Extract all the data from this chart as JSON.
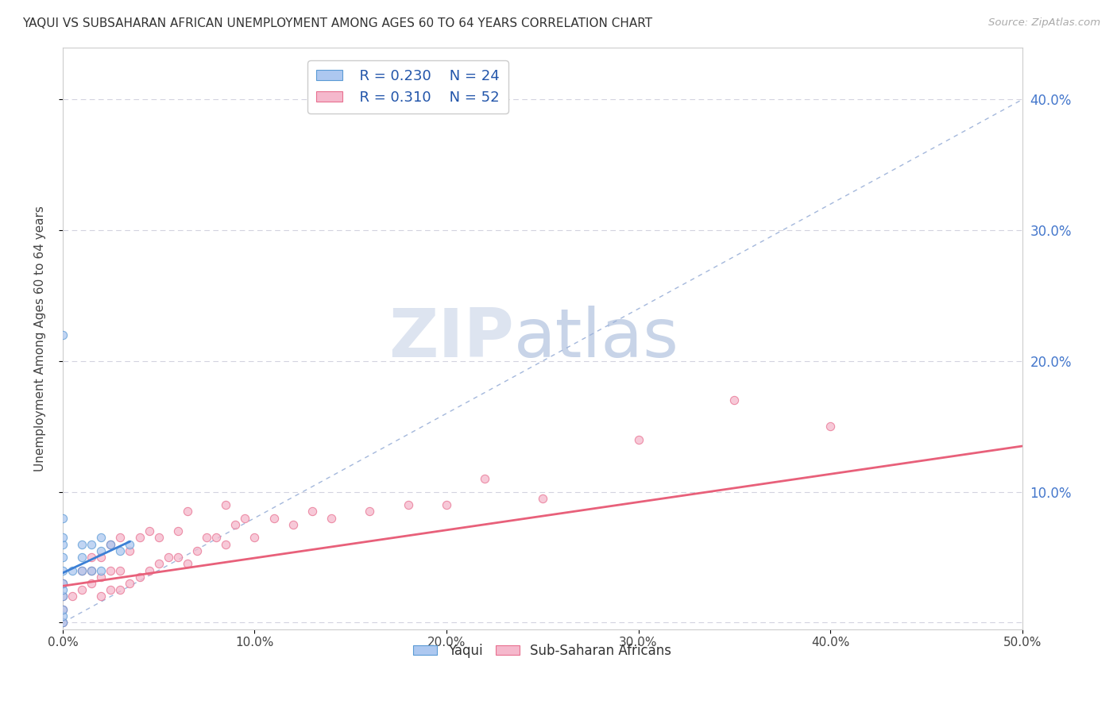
{
  "title": "YAQUI VS SUBSAHARAN AFRICAN UNEMPLOYMENT AMONG AGES 60 TO 64 YEARS CORRELATION CHART",
  "source": "Source: ZipAtlas.com",
  "ylabel": "Unemployment Among Ages 60 to 64 years",
  "xlim": [
    0.0,
    0.5
  ],
  "ylim": [
    -0.005,
    0.44
  ],
  "xticks": [
    0.0,
    0.1,
    0.2,
    0.3,
    0.4,
    0.5
  ],
  "yticks": [
    0.0,
    0.1,
    0.2,
    0.3,
    0.4
  ],
  "xtick_labels": [
    "0.0%",
    "10.0%",
    "20.0%",
    "30.0%",
    "40.0%",
    "50.0%"
  ],
  "ytick_labels": [
    "10.0%",
    "20.0%",
    "30.0%",
    "40.0%"
  ],
  "background_color": "#ffffff",
  "grid_color": "#c8c8d8",
  "yaqui_fill_color": "#adc8f0",
  "yaqui_edge_color": "#5b9bd5",
  "subsaharan_fill_color": "#f5b8cc",
  "subsaharan_edge_color": "#e87090",
  "yaqui_line_color": "#3b7fd5",
  "subsaharan_line_color": "#e8607a",
  "refline_color": "#9ab0d8",
  "R_yaqui": 0.23,
  "N_yaqui": 24,
  "R_subsaharan": 0.31,
  "N_subsaharan": 52,
  "yaqui_points_x": [
    0.0,
    0.0,
    0.0,
    0.0,
    0.0,
    0.0,
    0.0,
    0.0,
    0.0,
    0.0,
    0.0,
    0.0,
    0.005,
    0.01,
    0.01,
    0.01,
    0.015,
    0.015,
    0.02,
    0.02,
    0.02,
    0.025,
    0.03,
    0.035
  ],
  "yaqui_points_y": [
    0.0,
    0.005,
    0.01,
    0.02,
    0.025,
    0.03,
    0.04,
    0.05,
    0.06,
    0.065,
    0.08,
    0.22,
    0.04,
    0.04,
    0.05,
    0.06,
    0.04,
    0.06,
    0.04,
    0.055,
    0.065,
    0.06,
    0.055,
    0.06
  ],
  "subsaharan_points_x": [
    0.0,
    0.0,
    0.0,
    0.0,
    0.005,
    0.01,
    0.01,
    0.015,
    0.015,
    0.015,
    0.02,
    0.02,
    0.02,
    0.025,
    0.025,
    0.025,
    0.03,
    0.03,
    0.03,
    0.035,
    0.035,
    0.04,
    0.04,
    0.045,
    0.045,
    0.05,
    0.05,
    0.055,
    0.06,
    0.06,
    0.065,
    0.065,
    0.07,
    0.075,
    0.08,
    0.085,
    0.085,
    0.09,
    0.095,
    0.1,
    0.11,
    0.12,
    0.13,
    0.14,
    0.16,
    0.18,
    0.2,
    0.22,
    0.25,
    0.3,
    0.35,
    0.4
  ],
  "subsaharan_points_y": [
    0.0,
    0.01,
    0.02,
    0.03,
    0.02,
    0.025,
    0.04,
    0.03,
    0.04,
    0.05,
    0.02,
    0.035,
    0.05,
    0.025,
    0.04,
    0.06,
    0.025,
    0.04,
    0.065,
    0.03,
    0.055,
    0.035,
    0.065,
    0.04,
    0.07,
    0.045,
    0.065,
    0.05,
    0.05,
    0.07,
    0.045,
    0.085,
    0.055,
    0.065,
    0.065,
    0.06,
    0.09,
    0.075,
    0.08,
    0.065,
    0.08,
    0.075,
    0.085,
    0.08,
    0.085,
    0.09,
    0.09,
    0.11,
    0.095,
    0.14,
    0.17,
    0.15
  ],
  "yaqui_trend_x": [
    0.0,
    0.035
  ],
  "yaqui_trend_y": [
    0.038,
    0.062
  ],
  "subsaharan_trend_x": [
    0.0,
    0.5
  ],
  "subsaharan_trend_y": [
    0.028,
    0.135
  ],
  "refline_x": [
    0.0,
    0.5
  ],
  "refline_y": [
    0.0,
    0.4
  ]
}
